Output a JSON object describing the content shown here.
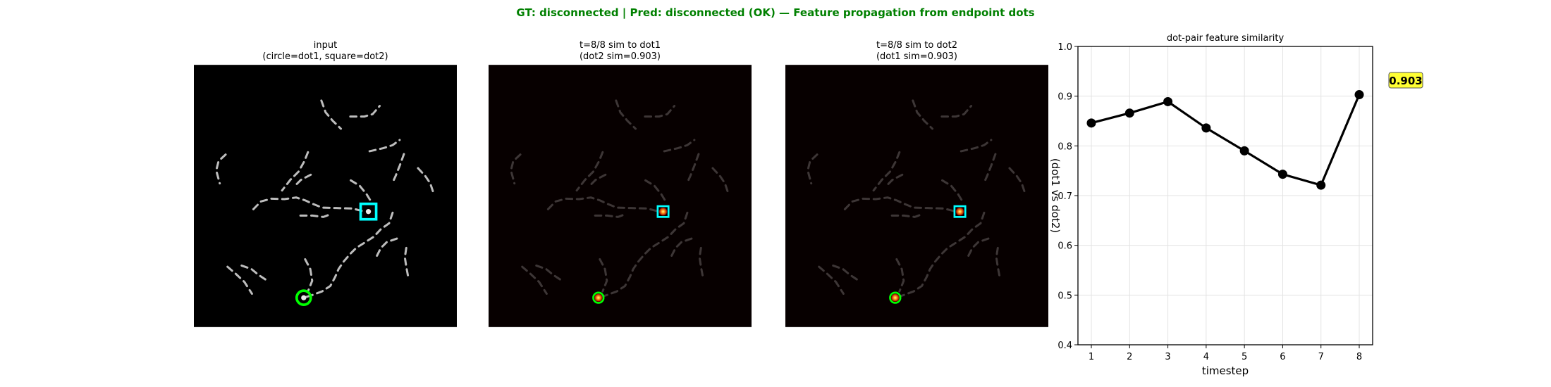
{
  "figure": {
    "suptitle": "GT: disconnected | Pred: disconnected (OK)  — Feature propagation from endpoint dots",
    "suptitle_color": "#008000"
  },
  "panels": [
    {
      "title_line1": "input",
      "title_line2": "(circle=dot1, square=dot2)",
      "style": "input"
    },
    {
      "title_line1": "t=8/8  sim to dot1",
      "title_line2": "(dot2 sim=0.903)",
      "style": "heat"
    },
    {
      "title_line1": "t=8/8  sim to dot2",
      "title_line2": "(dot1 sim=0.903)",
      "style": "heat"
    }
  ],
  "markers": {
    "dot1": "circle",
    "dot2": "square",
    "dot1_color": "#00ff00",
    "dot2_color": "#00ffff"
  },
  "chart_data": {
    "type": "line",
    "title": "dot-pair feature similarity",
    "xlabel": "timestep",
    "ylabel_visible": "(dot1 vs dot2)",
    "x": [
      1,
      2,
      3,
      4,
      5,
      6,
      7,
      8
    ],
    "series": [
      {
        "values": [
          0.846,
          0.866,
          0.889,
          0.836,
          0.79,
          0.743,
          0.721,
          0.903
        ],
        "color": "#000000"
      }
    ],
    "xticks": [
      "1",
      "2",
      "3",
      "4",
      "5",
      "6",
      "7",
      "8"
    ],
    "yticks": [
      "0.4",
      "0.5",
      "0.6",
      "0.7",
      "0.8",
      "0.9",
      "1.0"
    ],
    "ylim": [
      0.4,
      1.0
    ],
    "xlim": [
      0.65,
      8.35
    ],
    "grid": true,
    "annotation": {
      "text": "0.903",
      "x": 8,
      "background": "#ffff33"
    }
  }
}
